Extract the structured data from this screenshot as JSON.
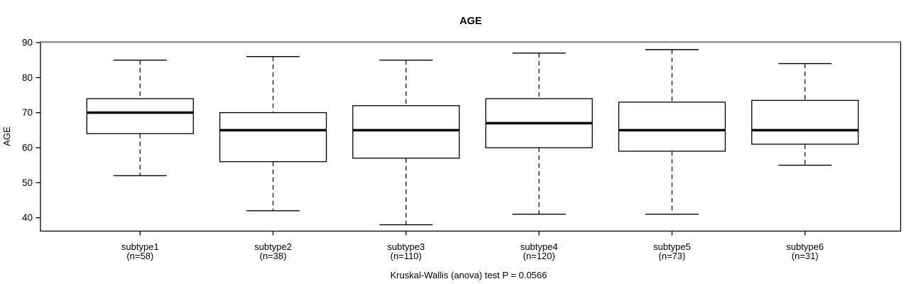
{
  "chart_data": {
    "type": "boxplot",
    "title": "AGE",
    "subtitle": "Kruskal-Wallis (anova) test P = 0.0566",
    "ylabel": "AGE",
    "xlabel": "",
    "ylim": [
      36,
      90
    ],
    "yticks": [
      40,
      50,
      60,
      70,
      80,
      90
    ],
    "grid": false,
    "legend": "none",
    "groups": [
      {
        "label": "subtype1",
        "n_label": "(n=58)",
        "n": 58,
        "whisker_low": 52,
        "q1": 64,
        "median": 70,
        "q3": 74,
        "whisker_high": 85,
        "outliers": []
      },
      {
        "label": "subtype2",
        "n_label": "(n=38)",
        "n": 38,
        "whisker_low": 42,
        "q1": 56,
        "median": 65,
        "q3": 70,
        "whisker_high": 86,
        "outliers": []
      },
      {
        "label": "subtype3",
        "n_label": "(n=110)",
        "n": 110,
        "whisker_low": 38,
        "q1": 57,
        "median": 65,
        "q3": 72,
        "whisker_high": 85,
        "outliers": []
      },
      {
        "label": "subtype4",
        "n_label": "(n=120)",
        "n": 120,
        "whisker_low": 41,
        "q1": 60,
        "median": 67,
        "q3": 74,
        "whisker_high": 87,
        "outliers": []
      },
      {
        "label": "subtype5",
        "n_label": "(n=73)",
        "n": 73,
        "whisker_low": 41,
        "q1": 59,
        "median": 65,
        "q3": 73,
        "whisker_high": 88,
        "outliers": []
      },
      {
        "label": "subtype6",
        "n_label": "(n=31)",
        "n": 31,
        "whisker_low": 55,
        "q1": 61,
        "median": 65,
        "q3": 73.5,
        "whisker_high": 84,
        "outliers": []
      }
    ],
    "colors": {
      "box_stroke": "#000000",
      "box_fill": "#ffffff",
      "median": "#000000",
      "whisker": "#000000",
      "border": "#000000",
      "border_top": "#8f8f8f",
      "text": "#000000",
      "background": "#ffffff"
    }
  }
}
